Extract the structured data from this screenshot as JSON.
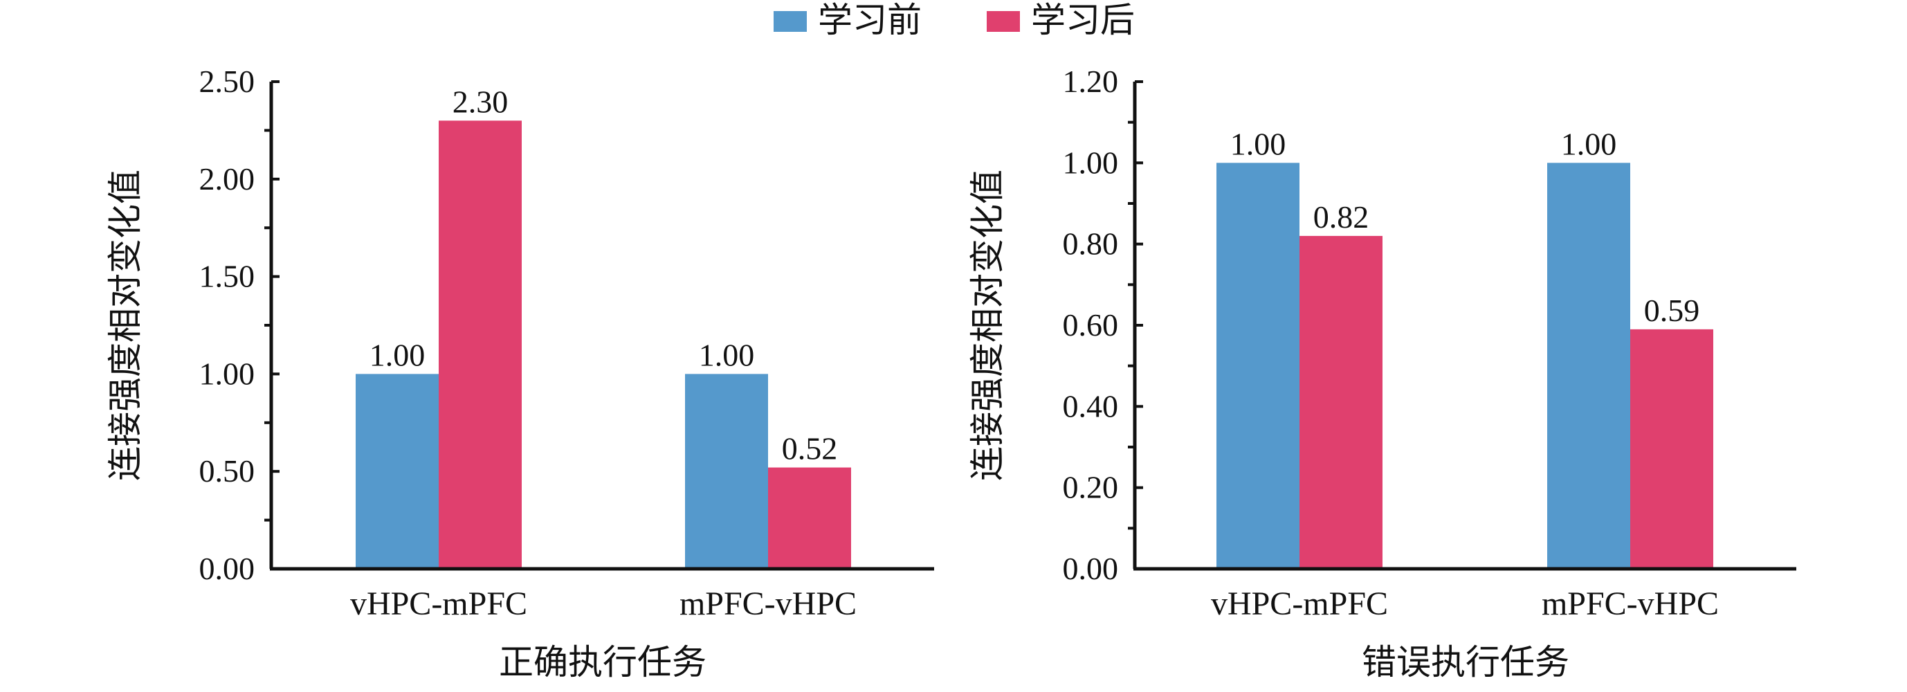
{
  "legend": {
    "items": [
      {
        "label": "学习前",
        "color": "#5599cc"
      },
      {
        "label": "学习后",
        "color": "#e0406e"
      }
    ]
  },
  "chart_data": [
    {
      "type": "bar",
      "categories": [
        "vHPC-mPFC",
        "mPFC-vHPC"
      ],
      "series": [
        {
          "name": "学习前",
          "values": [
            1.0,
            1.0
          ],
          "labels": [
            "1.00",
            "1.00"
          ]
        },
        {
          "name": "学习后",
          "values": [
            2.3,
            0.52
          ],
          "labels": [
            "2.30",
            "0.52"
          ]
        }
      ],
      "xlabel": "正确执行任务",
      "ylabel": "连接强度相对变化值",
      "ylim": [
        0,
        2.5
      ],
      "yticks": [
        "0.00",
        "0.50",
        "1.00",
        "1.50",
        "2.00",
        "2.50"
      ],
      "grid": false,
      "legend_position": "top-center"
    },
    {
      "type": "bar",
      "categories": [
        "vHPC-mPFC",
        "mPFC-vHPC"
      ],
      "series": [
        {
          "name": "学习前",
          "values": [
            1.0,
            1.0
          ],
          "labels": [
            "1.00",
            "1.00"
          ]
        },
        {
          "name": "学习后",
          "values": [
            0.82,
            0.59
          ],
          "labels": [
            "0.82",
            "0.59"
          ]
        }
      ],
      "xlabel": "错误执行任务",
      "ylabel": "连接强度相对变化值",
      "ylim": [
        0,
        1.2
      ],
      "yticks": [
        "0.00",
        "0.20",
        "0.40",
        "0.60",
        "0.80",
        "1.00",
        "1.20"
      ],
      "grid": false,
      "legend_position": "top-center"
    }
  ]
}
